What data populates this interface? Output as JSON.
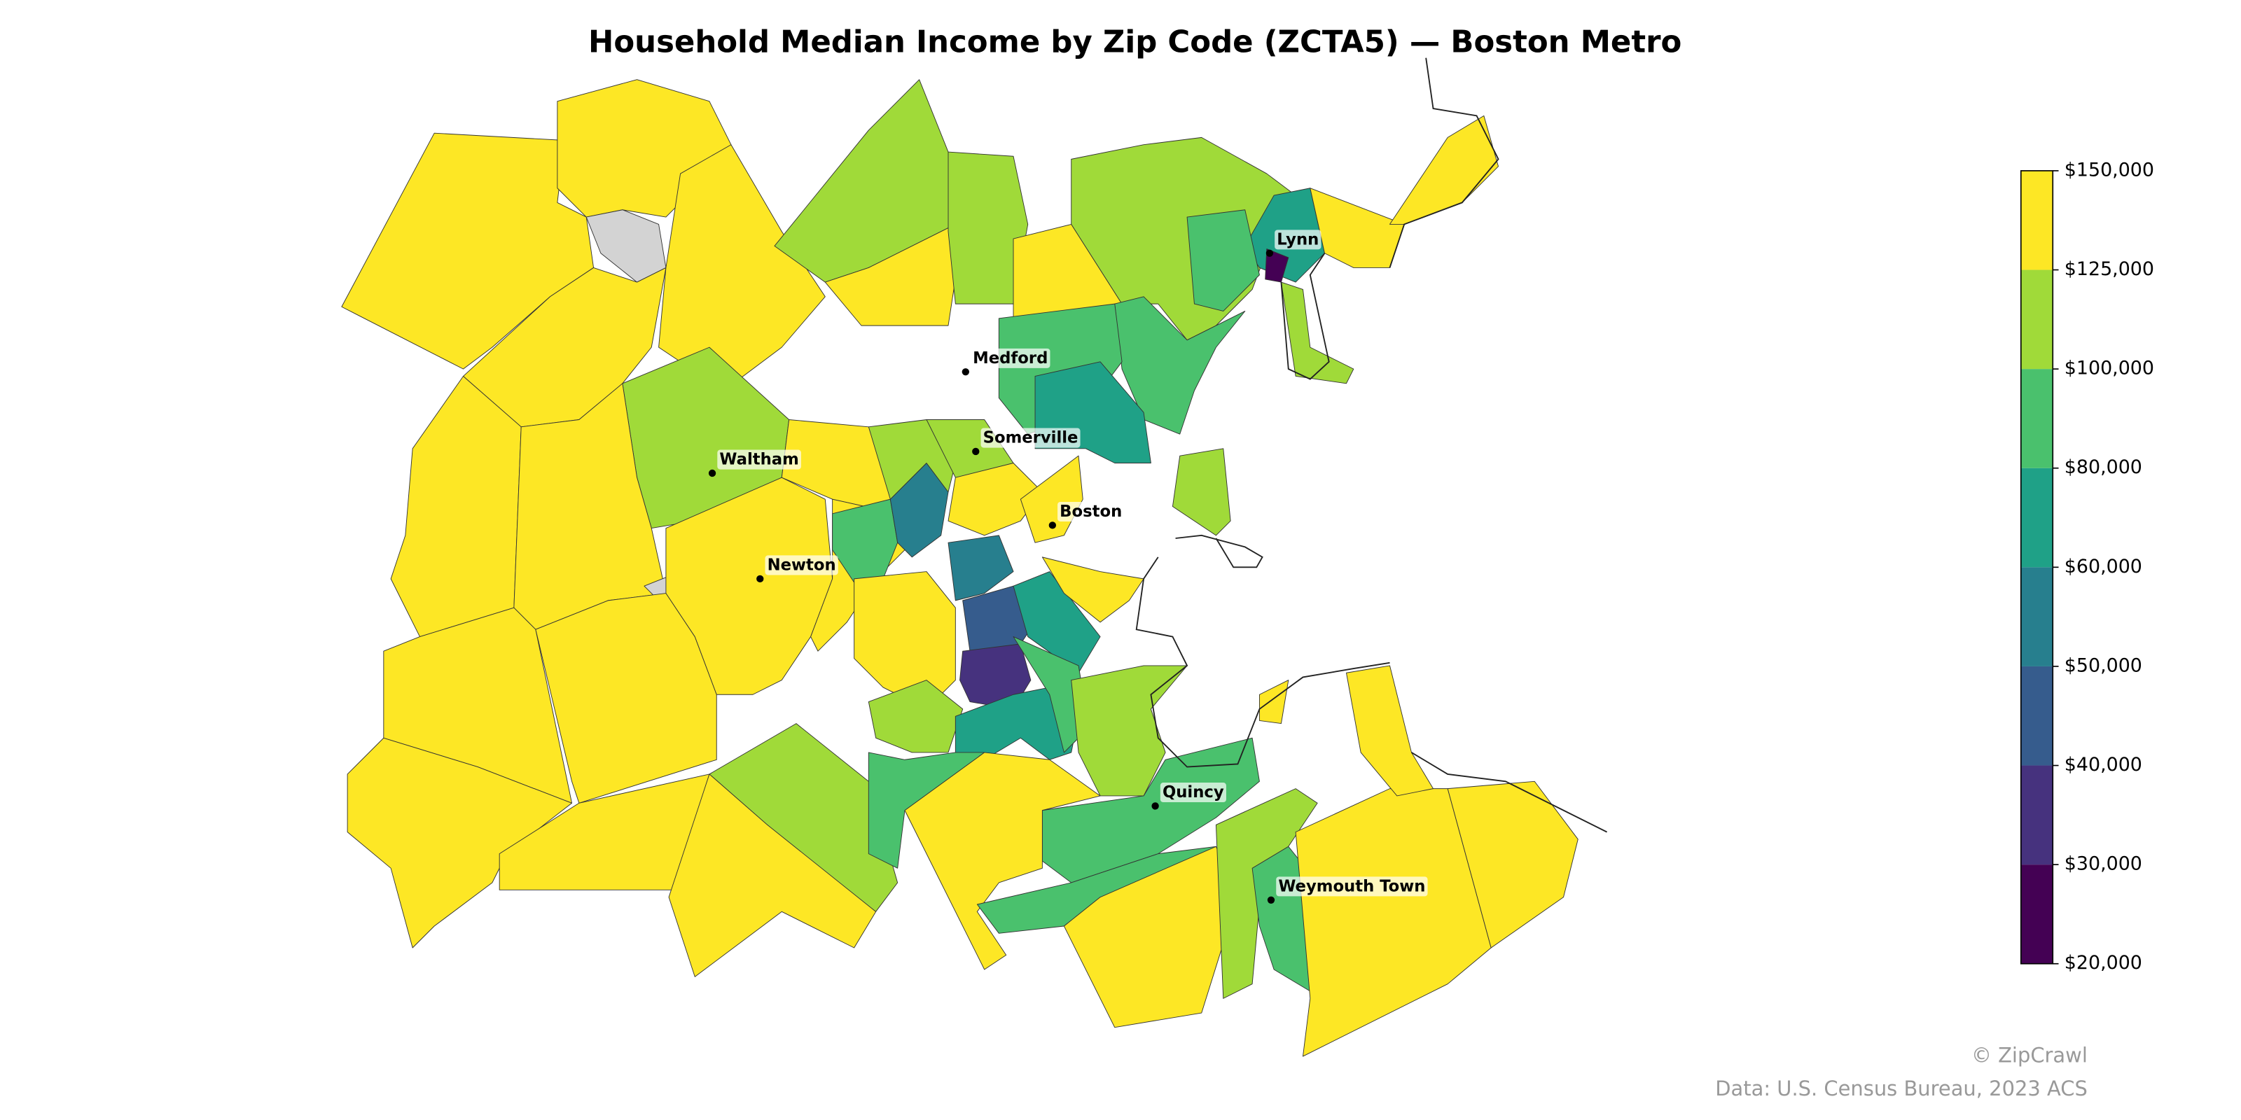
{
  "chart_data": {
    "type": "choropleth",
    "title": "Household Median Income by Zip Code (ZCTA5) — Boston Metro",
    "values": [
      140000,
      140000,
      null,
      140000,
      140000,
      112000,
      140000,
      112000,
      140000,
      112000,
      65000,
      25000,
      140000,
      140000,
      112000,
      90000,
      90000,
      90000,
      70000,
      112000,
      140000,
      140000,
      null,
      140000,
      140000,
      140000,
      140000,
      112000,
      140000,
      140000,
      140000,
      140000,
      90000,
      55000,
      112000,
      112000,
      140000,
      140000,
      112000,
      140000,
      55000,
      45000,
      35000,
      65000,
      65000,
      90000,
      140000,
      112000,
      90000,
      140000,
      90000,
      90000,
      140000,
      112000,
      90000,
      140000,
      140000,
      140000,
      112000,
      140000
    ],
    "missing_color": "#d3d3d3",
    "colorbar": {
      "ticks": [
        {
          "value": 20000,
          "label": "$20,000"
        },
        {
          "value": 30000,
          "label": "$30,000"
        },
        {
          "value": 40000,
          "label": "$40,000"
        },
        {
          "value": 50000,
          "label": "$50,000"
        },
        {
          "value": 60000,
          "label": "$60,000"
        },
        {
          "value": 80000,
          "label": "$80,000"
        },
        {
          "value": 100000,
          "label": "$100,000"
        },
        {
          "value": 125000,
          "label": "$125,000"
        },
        {
          "value": 150000,
          "label": "$150,000"
        }
      ],
      "colors": [
        "#440154",
        "#46327e",
        "#365c8d",
        "#277f8e",
        "#1fa187",
        "#4ac16d",
        "#a0da39",
        "#fde725"
      ]
    },
    "cities": [
      "Lynn",
      "Medford",
      "Somerville",
      "Waltham",
      "Boston",
      "Newton",
      "Quincy",
      "Weymouth Town"
    ],
    "credit": "© ZipCrawl",
    "source": "Data: U.S. Census Bureau, 2023 ACS"
  }
}
